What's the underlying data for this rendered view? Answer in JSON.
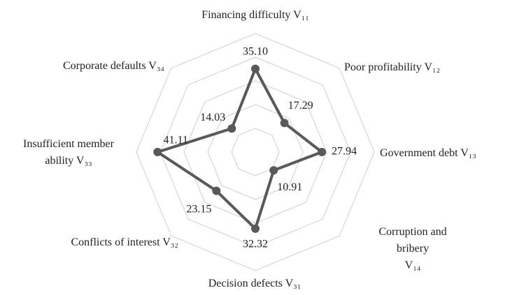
{
  "chart_data": {
    "type": "radar",
    "categories": [
      "Financing difficulty V₁₁",
      "Poor profitability V₁₂",
      "Government debt V₁₃",
      "Corruption and bribery\nV₁₄",
      "Decision defects  V₃₁",
      "Conflicts of interest V₃₂",
      "Insufficient member\nability V₃₃",
      "Corporate defaults V₃₄"
    ],
    "values": [
      35.1,
      17.29,
      27.94,
      10.91,
      32.32,
      23.15,
      41.11,
      14.03
    ],
    "value_labels": [
      "35.10",
      "17.29",
      "27.94",
      "10.91",
      "32.32",
      "23.15",
      "41.11",
      "14.03"
    ],
    "color": "#595959",
    "ylim": [
      0,
      50
    ],
    "yticks": [
      0,
      10,
      20,
      30,
      40,
      50
    ],
    "grid": true
  }
}
